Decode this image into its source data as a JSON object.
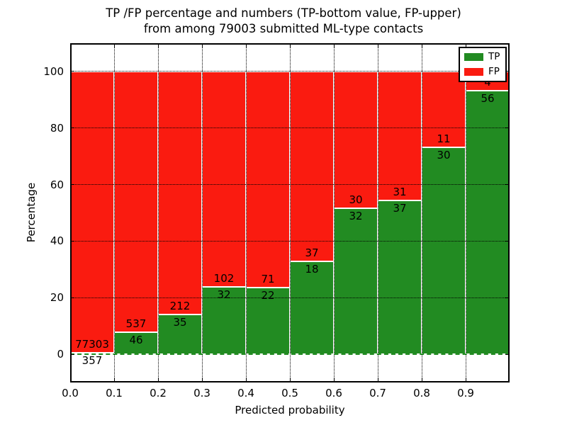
{
  "figure": {
    "title_line1": "TP /FP percentage and numbers (TP-bottom value, FP-upper)",
    "title_line2": "from among 79003 submitted ML-type contacts"
  },
  "chart_data": {
    "type": "bar",
    "stacked": true,
    "normalized_to_percent": true,
    "title": "TP /FP percentage and numbers (TP-bottom value, FP-upper)\nfrom among 79003 submitted ML-type contacts",
    "xlabel": "Predicted probability",
    "ylabel": "Percentage",
    "total_contacts": 79003,
    "xlim": [
      0.0,
      1.0
    ],
    "ylim": [
      -10,
      110
    ],
    "bin_width": 0.1,
    "bin_starts": [
      0.0,
      0.1,
      0.2,
      0.3,
      0.4,
      0.5,
      0.6,
      0.7,
      0.8,
      0.9
    ],
    "xticks": [
      "0.0",
      "0.1",
      "0.2",
      "0.3",
      "0.4",
      "0.5",
      "0.6",
      "0.7",
      "0.8",
      "0.9"
    ],
    "yticks": [
      "0",
      "20",
      "40",
      "60",
      "80",
      "100"
    ],
    "grid": true,
    "series": [
      {
        "name": "TP",
        "color": "#228b22",
        "counts": [
          357,
          46,
          35,
          32,
          22,
          18,
          32,
          37,
          30,
          56
        ]
      },
      {
        "name": "FP",
        "color": "#fa1b10",
        "counts": [
          77303,
          537,
          212,
          102,
          71,
          37,
          30,
          31,
          11,
          4
        ]
      }
    ],
    "tp_percent": [
      0.46,
      7.89,
      14.17,
      23.88,
      23.66,
      32.73,
      51.61,
      54.41,
      73.17,
      93.33
    ],
    "legend": {
      "position": "upper right",
      "entries": [
        {
          "label": "TP",
          "color": "#228b22"
        },
        {
          "label": "FP",
          "color": "#fa1b10"
        }
      ]
    },
    "colors": {
      "tp_green": "#228b22",
      "fp_red": "#fa1b10",
      "grid": "#000000",
      "bar_edge": "#ffffff",
      "background": "#ffffff"
    }
  }
}
